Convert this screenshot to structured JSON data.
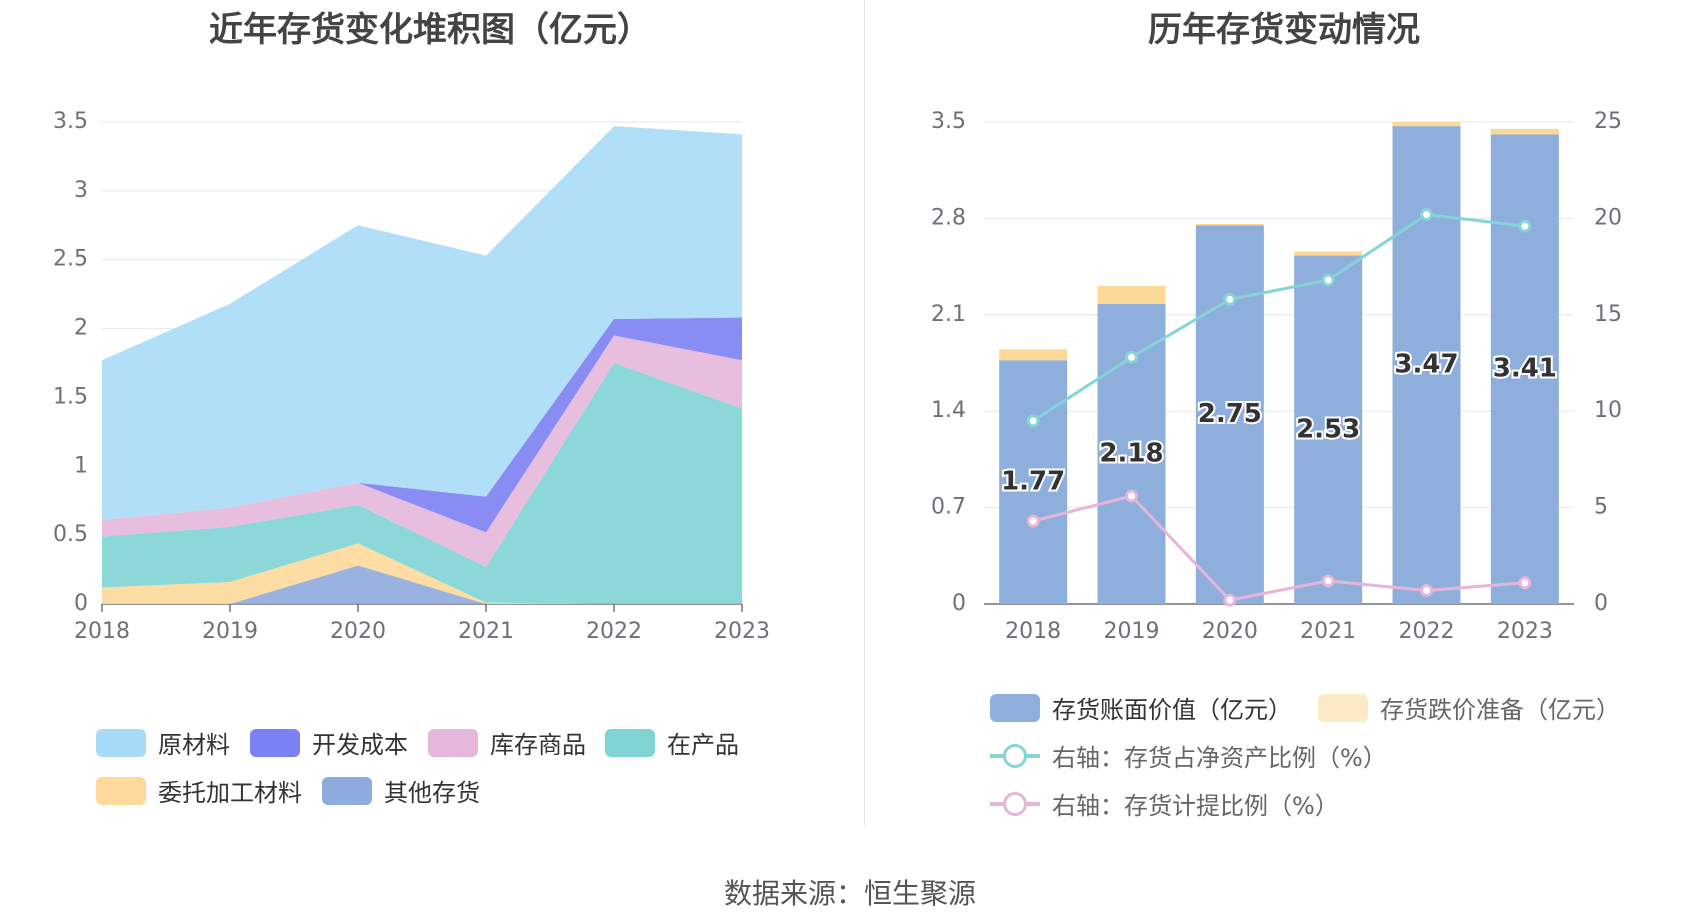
{
  "source_text": "数据来源：恒生聚源",
  "chart_data": [
    {
      "type": "area",
      "stacked": true,
      "title": "近年存货变化堆积图（亿元）",
      "categories": [
        "2018",
        "2019",
        "2020",
        "2021",
        "2022",
        "2023"
      ],
      "ylim": [
        0,
        3.5
      ],
      "yticks": [
        "0",
        "0.5",
        "1",
        "1.5",
        "2",
        "2.5",
        "3",
        "3.5"
      ],
      "grid": true,
      "legend_position": "bottom",
      "series": [
        {
          "name": "其他存货",
          "color": "#8faadc",
          "values": [
            0,
            0,
            0.28,
            0,
            0,
            0
          ]
        },
        {
          "name": "委托加工材料",
          "color": "#fed99b",
          "values": [
            0.12,
            0.16,
            0.16,
            0.01,
            0,
            0
          ]
        },
        {
          "name": "在产品",
          "color": "#80d4d4",
          "values": [
            0.37,
            0.4,
            0.28,
            0.26,
            1.75,
            1.42
          ]
        },
        {
          "name": "库存商品",
          "color": "#e6b7db",
          "values": [
            0.12,
            0.14,
            0.16,
            0.25,
            0.2,
            0.35
          ]
        },
        {
          "name": "开发成本",
          "color": "#7b80f2",
          "values": [
            0,
            0,
            0,
            0.26,
            0.12,
            0.31
          ]
        },
        {
          "name": "原材料",
          "color": "#a8dcf6",
          "values": [
            1.16,
            1.48,
            1.87,
            1.75,
            1.4,
            1.33
          ]
        }
      ],
      "legend_order": [
        "原材料",
        "开发成本",
        "库存商品",
        "在产品",
        "委托加工材料",
        "其他存货"
      ]
    },
    {
      "type": "bar",
      "title": "历年存货变动情况",
      "categories": [
        "2018",
        "2019",
        "2020",
        "2021",
        "2022",
        "2023"
      ],
      "ylim": [
        0,
        3.5
      ],
      "yticks": [
        "0",
        "0.7",
        "1.4",
        "2.1",
        "2.8",
        "3.5"
      ],
      "y2lim": [
        0,
        25
      ],
      "y2ticks": [
        "0",
        "5",
        "10",
        "15",
        "20",
        "25"
      ],
      "grid": true,
      "legend_position": "bottom",
      "series": [
        {
          "name": "存货账面价值（亿元）",
          "type": "bar",
          "axis": "left",
          "color": "#8eaedb",
          "values": [
            1.77,
            2.18,
            2.75,
            2.53,
            3.47,
            3.41
          ],
          "labels": [
            "1.77",
            "2.18",
            "2.75",
            "2.53",
            "3.47",
            "3.41"
          ]
        },
        {
          "name": "存货跌价准备（亿元）",
          "type": "bar",
          "axis": "left",
          "color": "#fdd998",
          "stacked": true,
          "values": [
            0.08,
            0.13,
            0.01,
            0.03,
            0.03,
            0.04
          ]
        },
        {
          "name": "右轴：存货占净资产比例（%）",
          "type": "line",
          "axis": "right",
          "color": "#86d3d9",
          "values": [
            9.5,
            12.8,
            15.8,
            16.8,
            20.2,
            19.6
          ]
        },
        {
          "name": "右轴：存货计提比例（%）",
          "type": "line",
          "axis": "right",
          "color": "#e6b5da",
          "values": [
            4.3,
            5.6,
            0.2,
            1.2,
            0.7,
            1.1
          ]
        }
      ]
    }
  ]
}
